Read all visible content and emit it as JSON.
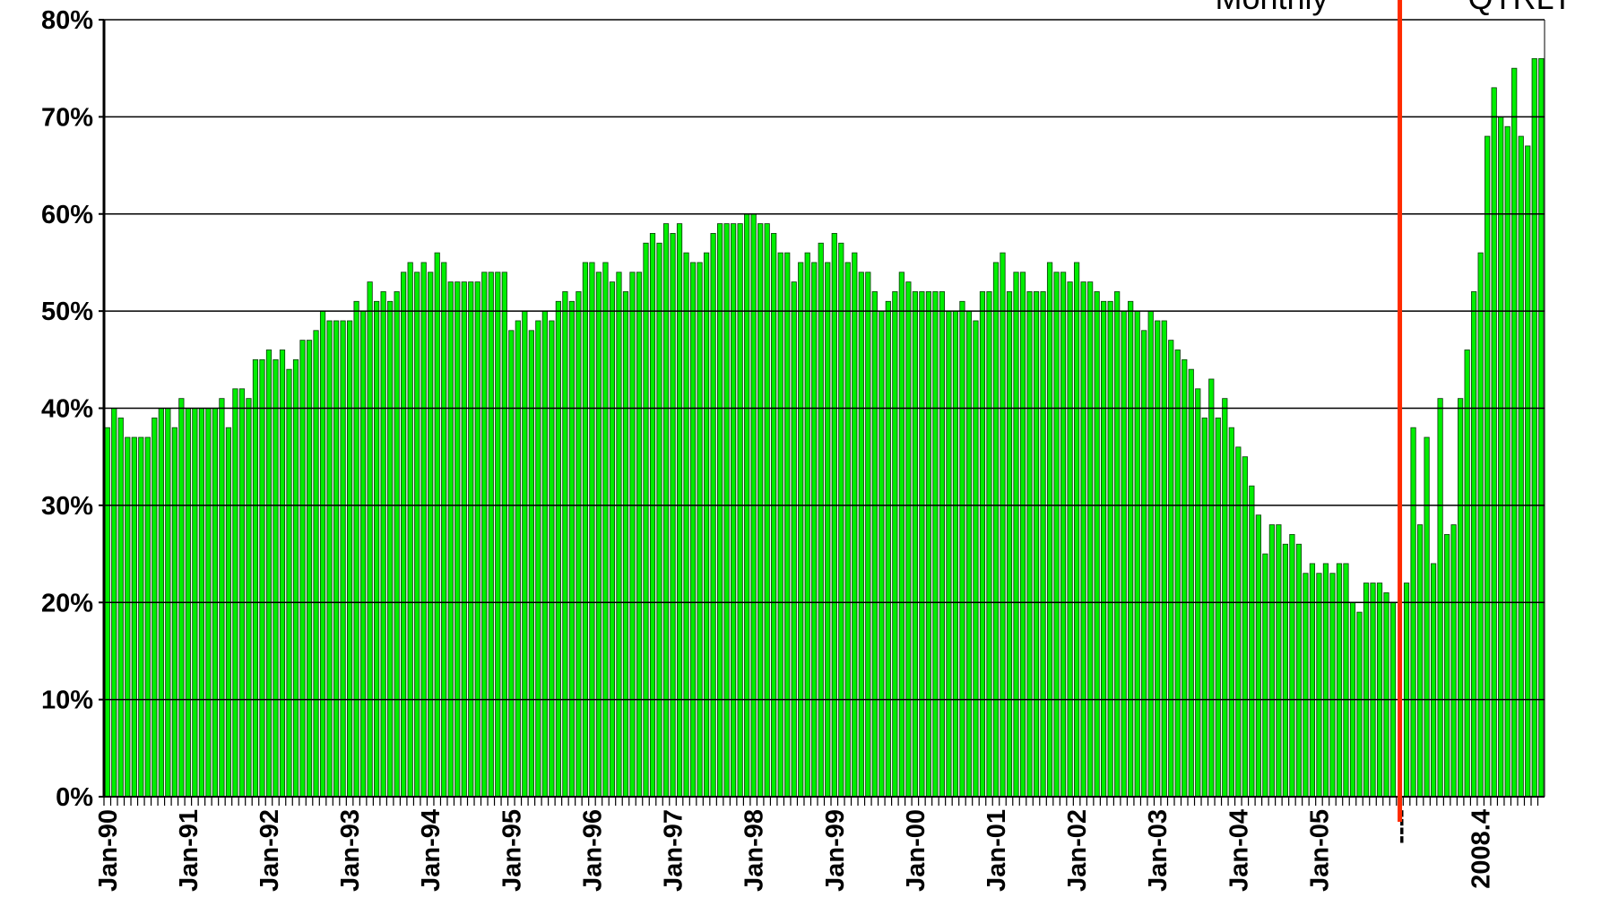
{
  "chart_data": {
    "type": "bar",
    "annotations": [
      "Monthly",
      "QTRLY"
    ],
    "categories": [
      "Jan-90",
      null,
      null,
      null,
      null,
      null,
      null,
      null,
      null,
      null,
      null,
      null,
      "Jan-91",
      null,
      null,
      null,
      null,
      null,
      null,
      null,
      null,
      null,
      null,
      null,
      "Jan-92",
      null,
      null,
      null,
      null,
      null,
      null,
      null,
      null,
      null,
      null,
      null,
      "Jan-93",
      null,
      null,
      null,
      null,
      null,
      null,
      null,
      null,
      null,
      null,
      null,
      "Jan-94",
      null,
      null,
      null,
      null,
      null,
      null,
      null,
      null,
      null,
      null,
      null,
      "Jan-95",
      null,
      null,
      null,
      null,
      null,
      null,
      null,
      null,
      null,
      null,
      null,
      "Jan-96",
      null,
      null,
      null,
      null,
      null,
      null,
      null,
      null,
      null,
      null,
      null,
      "Jan-97",
      null,
      null,
      null,
      null,
      null,
      null,
      null,
      null,
      null,
      null,
      null,
      "Jan-98",
      null,
      null,
      null,
      null,
      null,
      null,
      null,
      null,
      null,
      null,
      null,
      "Jan-99",
      null,
      null,
      null,
      null,
      null,
      null,
      null,
      null,
      null,
      null,
      null,
      "Jan-00",
      null,
      null,
      null,
      null,
      null,
      null,
      null,
      null,
      null,
      null,
      null,
      "Jan-01",
      null,
      null,
      null,
      null,
      null,
      null,
      null,
      null,
      null,
      null,
      null,
      "Jan-02",
      null,
      null,
      null,
      null,
      null,
      null,
      null,
      null,
      null,
      null,
      null,
      "Jan-03",
      null,
      null,
      null,
      null,
      null,
      null,
      null,
      null,
      null,
      null,
      null,
      "Jan-04",
      null,
      null,
      null,
      null,
      null,
      null,
      null,
      null,
      null,
      null,
      null,
      "Jan-05",
      null,
      null,
      null,
      null,
      null,
      null,
      null,
      null,
      null,
      null,
      null,
      "----",
      null,
      null,
      null,
      null,
      null,
      null,
      null,
      null,
      null,
      null,
      null,
      "2008.4",
      null,
      null,
      null,
      null,
      null,
      null,
      null,
      null,
      null
    ],
    "values": [
      38,
      40,
      39,
      37,
      37,
      37,
      37,
      39,
      40,
      40,
      38,
      41,
      40,
      40,
      40,
      40,
      40,
      41,
      38,
      42,
      42,
      41,
      45,
      45,
      46,
      45,
      46,
      44,
      45,
      47,
      47,
      48,
      50,
      49,
      49,
      49,
      49,
      51,
      50,
      53,
      51,
      52,
      51,
      52,
      54,
      55,
      54,
      55,
      54,
      56,
      55,
      53,
      53,
      53,
      53,
      53,
      54,
      54,
      54,
      54,
      48,
      49,
      50,
      48,
      49,
      50,
      49,
      51,
      52,
      51,
      52,
      55,
      55,
      54,
      55,
      53,
      54,
      52,
      54,
      54,
      57,
      58,
      57,
      59,
      58,
      59,
      56,
      55,
      55,
      56,
      58,
      59,
      59,
      59,
      59,
      60,
      60,
      59,
      59,
      58,
      56,
      56,
      53,
      55,
      56,
      55,
      57,
      55,
      58,
      57,
      55,
      56,
      54,
      54,
      52,
      50,
      51,
      52,
      54,
      53,
      52,
      52,
      52,
      52,
      52,
      50,
      50,
      51,
      50,
      49,
      52,
      52,
      55,
      56,
      52,
      54,
      54,
      52,
      52,
      52,
      55,
      54,
      54,
      53,
      55,
      53,
      53,
      52,
      51,
      51,
      52,
      50,
      51,
      50,
      48,
      50,
      49,
      49,
      47,
      46,
      45,
      44,
      42,
      39,
      43,
      39,
      41,
      38,
      36,
      35,
      32,
      29,
      25,
      28,
      28,
      26,
      27,
      26,
      23,
      24,
      23,
      24,
      23,
      24,
      24,
      20,
      19,
      22,
      22,
      22,
      21,
      20,
      null,
      22,
      38,
      28,
      37,
      24,
      41,
      27,
      28,
      41,
      46,
      52,
      56,
      68,
      73,
      70,
      69,
      75,
      68,
      67,
      76,
      76
    ],
    "color": "#00ee00",
    "divider_color": "#ff2a00",
    "ylim": [
      0,
      80
    ],
    "yticks": [
      {
        "value": 0,
        "label": "0%"
      },
      {
        "value": 10,
        "label": "10%"
      },
      {
        "value": 20,
        "label": "20%"
      },
      {
        "value": 30,
        "label": "30%"
      },
      {
        "value": 40,
        "label": "40%"
      },
      {
        "value": 50,
        "label": "50%"
      },
      {
        "value": 60,
        "label": "60%"
      },
      {
        "value": 70,
        "label": "70%"
      },
      {
        "value": 80,
        "label": "80%"
      }
    ],
    "grid": true
  }
}
